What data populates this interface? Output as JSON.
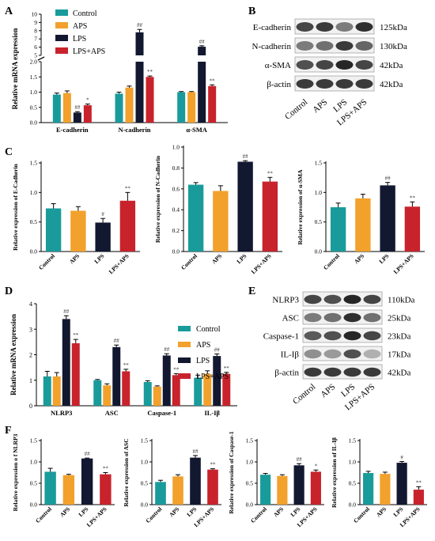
{
  "colors": {
    "control": "#1a9b9b",
    "aps": "#f2a12c",
    "lps": "#121830",
    "lps_aps": "#c8232c",
    "axis": "#000000",
    "blot_bg": "#f1f1f1",
    "band": "#1a1a1a"
  },
  "legend_labels": [
    "Control",
    "APS",
    "LPS",
    "LPS+APS"
  ],
  "panel_letters": [
    "A",
    "B",
    "C",
    "D",
    "E",
    "F"
  ],
  "chart_data": [
    {
      "id": "A",
      "type": "bar",
      "ylabel": "Relative mRNA expression",
      "categories": [
        "E-cadherin",
        "N-cadherin",
        "α-SMA"
      ],
      "series": [
        {
          "name": "Control",
          "values": [
            0.92,
            0.95,
            1.0
          ]
        },
        {
          "name": "APS",
          "values": [
            0.97,
            1.15,
            1.0
          ]
        },
        {
          "name": "LPS",
          "values": [
            0.33,
            7.8,
            6.05
          ]
        },
        {
          "name": "LPS+APS",
          "values": [
            0.57,
            1.5,
            1.2
          ]
        }
      ],
      "errors": [
        [
          0.05,
          0.05,
          0.02
        ],
        [
          0.07,
          0.05,
          0.02
        ],
        [
          0.03,
          0.35,
          0.12
        ],
        [
          0.04,
          0.03,
          0.04
        ]
      ],
      "sig": [
        [
          null,
          null,
          null
        ],
        [
          null,
          null,
          null
        ],
        [
          "##",
          "##",
          "##"
        ],
        [
          "*",
          "**",
          "**"
        ]
      ],
      "ytick_labels": [
        "0.0",
        "0.5",
        "1.0",
        "1.5",
        "2.0",
        "5",
        "6",
        "7",
        "8",
        "9",
        "10"
      ],
      "legend": "top-left"
    },
    {
      "id": "C1",
      "type": "bar",
      "ylabel": "Relative expression of E-Cadherin",
      "categories": [
        "Control",
        "APS",
        "LPS",
        "LPS+APS"
      ],
      "values": [
        0.73,
        0.69,
        0.49,
        0.86
      ],
      "errors": [
        0.08,
        0.07,
        0.07,
        0.14
      ],
      "sig": [
        null,
        null,
        "#",
        "**"
      ],
      "ylim": [
        0,
        1.5
      ],
      "yticks": [
        "0.0",
        "0.5",
        "1.0",
        "1.5"
      ]
    },
    {
      "id": "C2",
      "type": "bar",
      "ylabel": "Relative expression of N-Cadherin",
      "categories": [
        "Control",
        "APS",
        "LPS",
        "LPS+APS"
      ],
      "values": [
        0.64,
        0.58,
        0.86,
        0.67
      ],
      "errors": [
        0.02,
        0.05,
        0.01,
        0.04
      ],
      "sig": [
        null,
        null,
        "##",
        "**"
      ],
      "ylim": [
        0,
        1.0
      ],
      "yticks": [
        "0.0",
        "0.2",
        "0.4",
        "0.6",
        "0.8",
        "1.0"
      ]
    },
    {
      "id": "C3",
      "type": "bar",
      "ylabel": "Relative expression of α-SMA",
      "categories": [
        "Control",
        "APS",
        "LPS",
        "LPS+APS"
      ],
      "values": [
        0.75,
        0.9,
        1.12,
        0.76
      ],
      "errors": [
        0.07,
        0.07,
        0.05,
        0.08
      ],
      "sig": [
        null,
        null,
        "##",
        "**"
      ],
      "ylim": [
        0,
        1.5
      ],
      "yticks": [
        "0.0",
        "0.5",
        "1.0",
        "1.5"
      ]
    },
    {
      "id": "D",
      "type": "bar",
      "ylabel": "Relative mRNA expression",
      "categories": [
        "NLRP3",
        "ASC",
        "Caspase-1",
        "IL-Iβ"
      ],
      "series": [
        {
          "name": "Control",
          "values": [
            1.15,
            1.0,
            0.93,
            1.1
          ]
        },
        {
          "name": "APS",
          "values": [
            1.15,
            0.8,
            0.75,
            1.25
          ]
        },
        {
          "name": "LPS",
          "values": [
            3.4,
            2.3,
            1.97,
            1.95
          ]
        },
        {
          "name": "LPS+APS",
          "values": [
            2.45,
            1.35,
            1.2,
            1.25
          ]
        }
      ],
      "errors": [
        [
          0.2,
          0.03,
          0.05,
          0.1
        ],
        [
          0.15,
          0.06,
          0.03,
          0.12
        ],
        [
          0.13,
          0.08,
          0.07,
          0.08
        ],
        [
          0.15,
          0.08,
          0.06,
          0.06
        ]
      ],
      "sig": [
        [
          null,
          null,
          null,
          null
        ],
        [
          null,
          null,
          null,
          null
        ],
        [
          "##",
          "##",
          "##",
          "##"
        ],
        [
          "**",
          "**",
          "**",
          "**"
        ]
      ],
      "ylim": [
        0,
        4
      ],
      "yticks": [
        "0",
        "1",
        "2",
        "3",
        "4"
      ],
      "legend": "top-right"
    },
    {
      "id": "F1",
      "type": "bar",
      "ylabel": "Relative expression o f NLRP3",
      "categories": [
        "Control",
        "APS",
        "LPS",
        "LPS+APS"
      ],
      "values": [
        0.77,
        0.69,
        1.08,
        0.71
      ],
      "errors": [
        0.08,
        0.02,
        0.01,
        0.04
      ],
      "sig": [
        null,
        null,
        "##",
        "**"
      ],
      "ylim": [
        0,
        1.5
      ],
      "yticks": [
        "0.0",
        "0.5",
        "1.0",
        "1.5"
      ]
    },
    {
      "id": "F2",
      "type": "bar",
      "ylabel": "Relative expression of ASC",
      "categories": [
        "Control",
        "APS",
        "LPS",
        "LPS+APS"
      ],
      "values": [
        0.53,
        0.66,
        1.1,
        0.82
      ],
      "errors": [
        0.04,
        0.04,
        0.05,
        0.02
      ],
      "sig": [
        null,
        null,
        "##",
        "**"
      ],
      "ylim": [
        0,
        1.5
      ],
      "yticks": [
        "0.0",
        "0.5",
        "1.0",
        "1.5"
      ]
    },
    {
      "id": "F3",
      "type": "bar",
      "ylabel": "Relative expression of Caspase-1",
      "categories": [
        "Control",
        "APS",
        "LPS",
        "LPS+APS"
      ],
      "values": [
        0.7,
        0.67,
        0.92,
        0.77
      ],
      "errors": [
        0.03,
        0.03,
        0.04,
        0.04
      ],
      "sig": [
        null,
        null,
        "##",
        "*"
      ],
      "ylim": [
        0,
        1.5
      ],
      "yticks": [
        "0.0",
        "0.5",
        "1.0",
        "1.5"
      ]
    },
    {
      "id": "F4",
      "type": "bar",
      "ylabel": "Relative expression of IL-Iβ",
      "categories": [
        "Control",
        "APS",
        "LPS",
        "LPS+APS"
      ],
      "values": [
        0.74,
        0.72,
        0.98,
        0.35
      ],
      "errors": [
        0.04,
        0.04,
        0.03,
        0.07
      ],
      "sig": [
        null,
        null,
        "#",
        "**"
      ],
      "ylim": [
        0,
        1.5
      ],
      "yticks": [
        "0.0",
        "0.5",
        "1.0",
        "1.5"
      ]
    }
  ],
  "blot_B": {
    "proteins": [
      "E-cadherin",
      "N-cadherin",
      "α-SMA",
      "β-actin"
    ],
    "sizes": [
      "125kDa",
      "130kDa",
      "42kDa",
      "42kDa"
    ],
    "lanes": [
      "Control",
      "APS",
      "LPS",
      "LPS+APS"
    ],
    "intensity": [
      [
        0.8,
        0.85,
        0.55,
        0.9
      ],
      [
        0.55,
        0.6,
        0.85,
        0.65
      ],
      [
        0.75,
        0.8,
        0.95,
        0.8
      ],
      [
        0.85,
        0.85,
        0.85,
        0.85
      ]
    ]
  },
  "blot_E": {
    "proteins": [
      "NLRP3",
      "ASC",
      "Caspase-1",
      "IL-Iβ",
      "β-actin"
    ],
    "sizes": [
      "110kDa",
      "25kDa",
      "23kDa",
      "17kDa",
      "42kDa"
    ],
    "lanes": [
      "Control",
      "APS",
      "LPS",
      "LPS+APS"
    ],
    "intensity": [
      [
        0.8,
        0.75,
        0.95,
        0.8
      ],
      [
        0.55,
        0.6,
        0.9,
        0.6
      ],
      [
        0.7,
        0.75,
        0.95,
        0.8
      ],
      [
        0.45,
        0.4,
        0.75,
        0.3
      ],
      [
        0.85,
        0.85,
        0.85,
        0.85
      ]
    ]
  }
}
